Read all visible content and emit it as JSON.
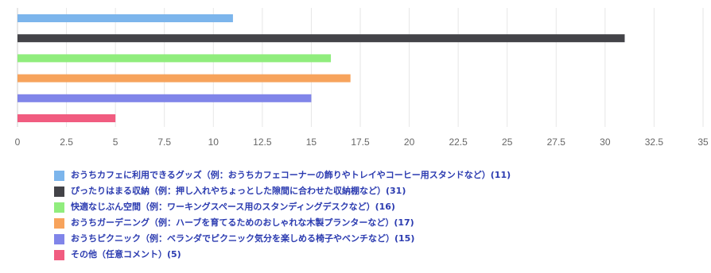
{
  "chart_data": {
    "type": "bar",
    "orientation": "horizontal",
    "title": "",
    "xlabel": "",
    "ylabel": "",
    "xlim": [
      0,
      35
    ],
    "x_ticks": [
      "0",
      "2.5",
      "5",
      "7.5",
      "10",
      "12.5",
      "15",
      "17.5",
      "20",
      "22.5",
      "25",
      "27.5",
      "30",
      "32.5",
      "35"
    ],
    "grid": "vertical lines",
    "legend_position": "bottom",
    "series": [
      {
        "name": "おうちカフェに利用できるグッズ（例：おうちカフェコーナーの飾りやトレイやコーヒー用スタンドなど）(11)",
        "value": 11,
        "color": "#7cb5ec"
      },
      {
        "name": "ぴったりはまる収納（例：押し入れやちょっとした隙間に合わせた収納棚など）(31)",
        "value": 31,
        "color": "#434348"
      },
      {
        "name": "快適なじぶん空間（例：ワーキングスペース用のスタンディングデスクなど）(16)",
        "value": 16,
        "color": "#90ed7d"
      },
      {
        "name": "おうちガーデニング（例：ハーブを育てるためのおしゃれな木製プランターなど）(17)",
        "value": 17,
        "color": "#f7a35c"
      },
      {
        "name": "おうちピクニック（例：ベランダでピクニック気分を楽しめる椅子やベンチなど）(15)",
        "value": 15,
        "color": "#8085e9"
      },
      {
        "name": "その他（任意コメント）(5)",
        "value": 5,
        "color": "#f15c80"
      }
    ]
  }
}
